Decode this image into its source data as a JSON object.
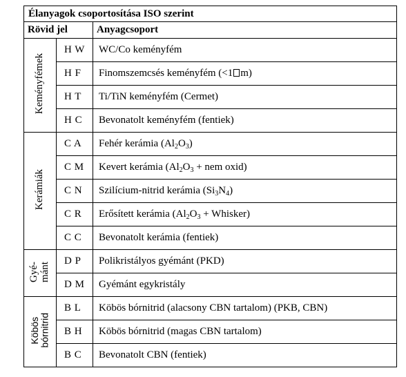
{
  "table": {
    "title": "Élanyagok csoportosítása ISO szerint",
    "headers": {
      "code": "Rövid jel",
      "group": "Anyagcsoport"
    },
    "groups": {
      "hard_metal": "Keményfémek",
      "ceramics": "Kerámiák",
      "diamond_line1": "Gyé-",
      "diamond_line2": "mánt",
      "cbn_line1": "Köbös",
      "cbn_line2": "bórnitrid"
    },
    "rows": [
      {
        "code": "H W",
        "name": "WC/Co keményfém"
      },
      {
        "code": "H F",
        "name_pre": "Finomszemcsés keményfém (<1",
        "name_post": "m)"
      },
      {
        "code": "H T",
        "name": "Ti/TiN keményfém (Cermet)"
      },
      {
        "code": "H C",
        "name": "Bevonatolt keményfém (fentiek)"
      },
      {
        "code": "C A",
        "name_pre": "Fehér kerámia (Al",
        "sub1": "2",
        "name_mid": "O",
        "sub2": "3",
        "name_post": ")"
      },
      {
        "code": "C M",
        "name_pre": "Kevert kerámia (Al",
        "sub1": "2",
        "name_mid": "O",
        "sub2": "3",
        "name_post": " + nem oxid)"
      },
      {
        "code": "C N",
        "name_pre": "Szilícium-nitrid kerámia (Si",
        "sub1": "3",
        "name_mid": "N",
        "sub2": "4",
        "name_post": ")"
      },
      {
        "code": "C R",
        "name_pre": "Erősített kerámia (Al",
        "sub1": "2",
        "name_mid": "O",
        "sub2": "3",
        "name_post": " + Whisker)"
      },
      {
        "code": "C C",
        "name": "Bevonatolt kerámia (fentiek)"
      },
      {
        "code": "D P",
        "name": "Polikristályos gyémánt (PKD)"
      },
      {
        "code": "D M",
        "name": "Gyémánt egykristály"
      },
      {
        "code": "B L",
        "name": "Köbös bórnitrid (alacsony CBN tartalom) (PKB, CBN)"
      },
      {
        "code": "B H",
        "name": "Köbös bórnitrid (magas CBN tartalom)"
      },
      {
        "code": "B C",
        "name": "Bevonatolt CBN (fentiek)"
      }
    ]
  }
}
